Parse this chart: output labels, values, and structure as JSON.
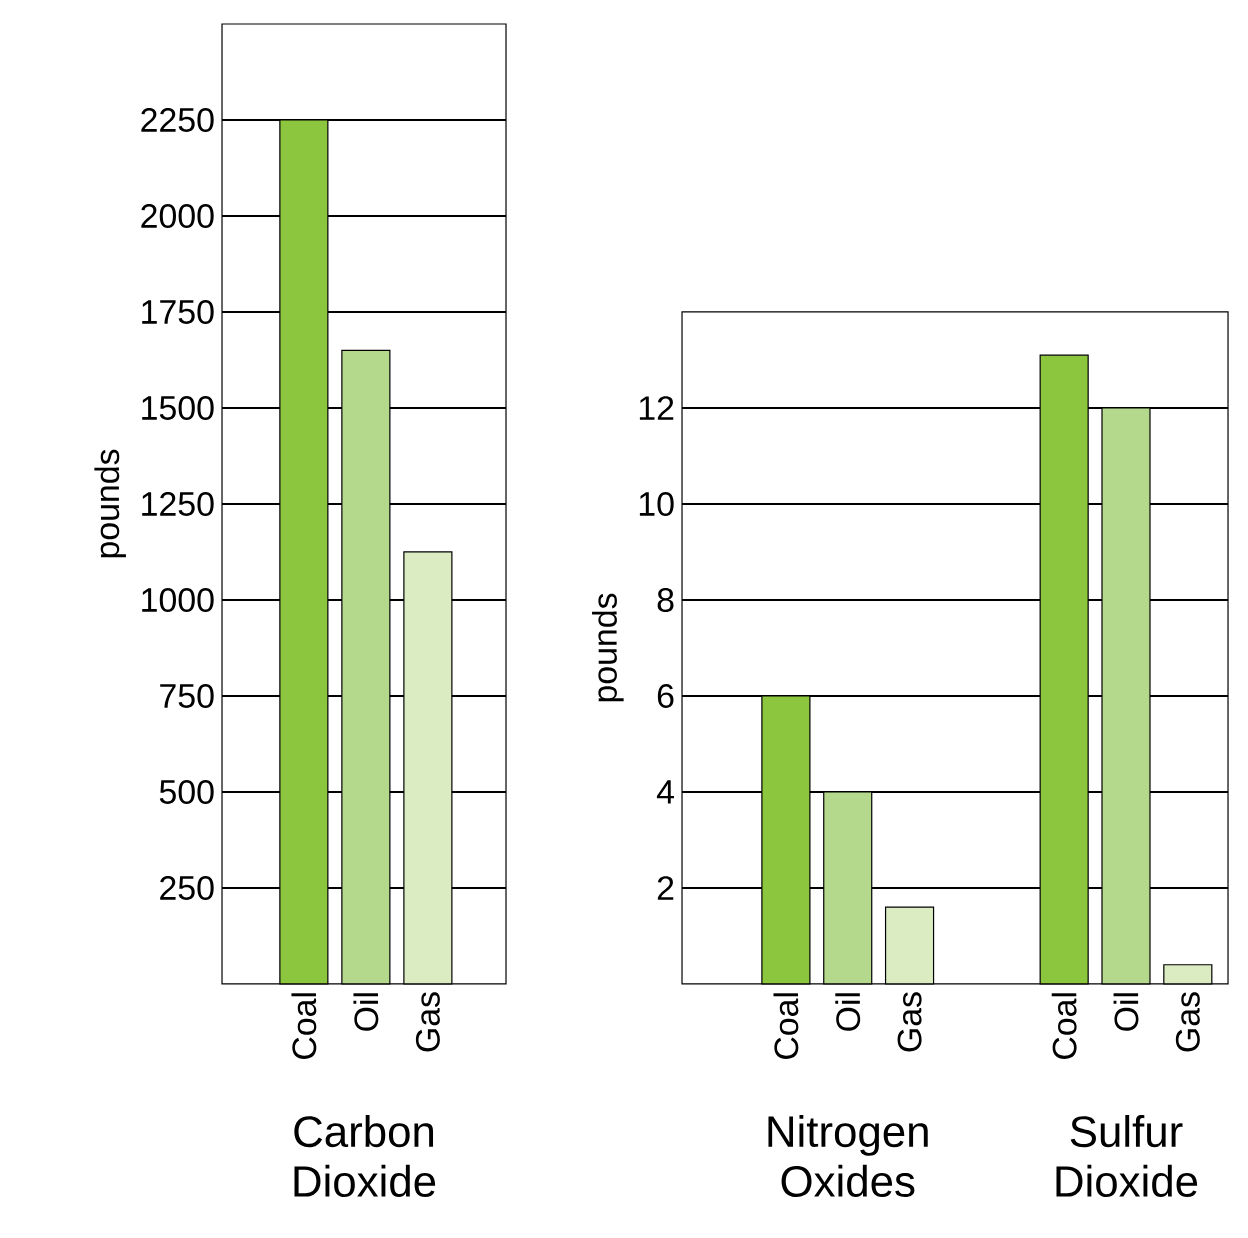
{
  "chart_data": [
    {
      "type": "bar",
      "xlabel": "Carbon Dioxide",
      "ylabel": "pounds",
      "categories": [
        "Coal",
        "Oil",
        "Gas"
      ],
      "values": [
        2250,
        1650,
        1125
      ],
      "colors": [
        "#8cc63f",
        "#b5d98c",
        "#dbecc3"
      ],
      "ylim": [
        0,
        2500
      ],
      "yticks": [
        250,
        500,
        750,
        1000,
        1250,
        1500,
        1750,
        2000,
        2250
      ],
      "grid": "y"
    },
    {
      "type": "bar",
      "ylabel": "pounds",
      "categories": [
        "Coal",
        "Oil",
        "Gas",
        "Coal",
        "Oil",
        "Gas"
      ],
      "values": [
        6,
        4,
        1.6,
        13.1,
        12,
        0.4
      ],
      "colors": [
        "#8cc63f",
        "#b5d98c",
        "#dbecc3",
        "#8cc63f",
        "#b5d98c",
        "#dbecc3"
      ],
      "ylim": [
        0,
        14
      ],
      "yticks": [
        2,
        4,
        6,
        8,
        10,
        12
      ],
      "grid": "y",
      "annotations": [
        "Nitrogen Oxides",
        "Sulfur Dioxide"
      ]
    }
  ]
}
